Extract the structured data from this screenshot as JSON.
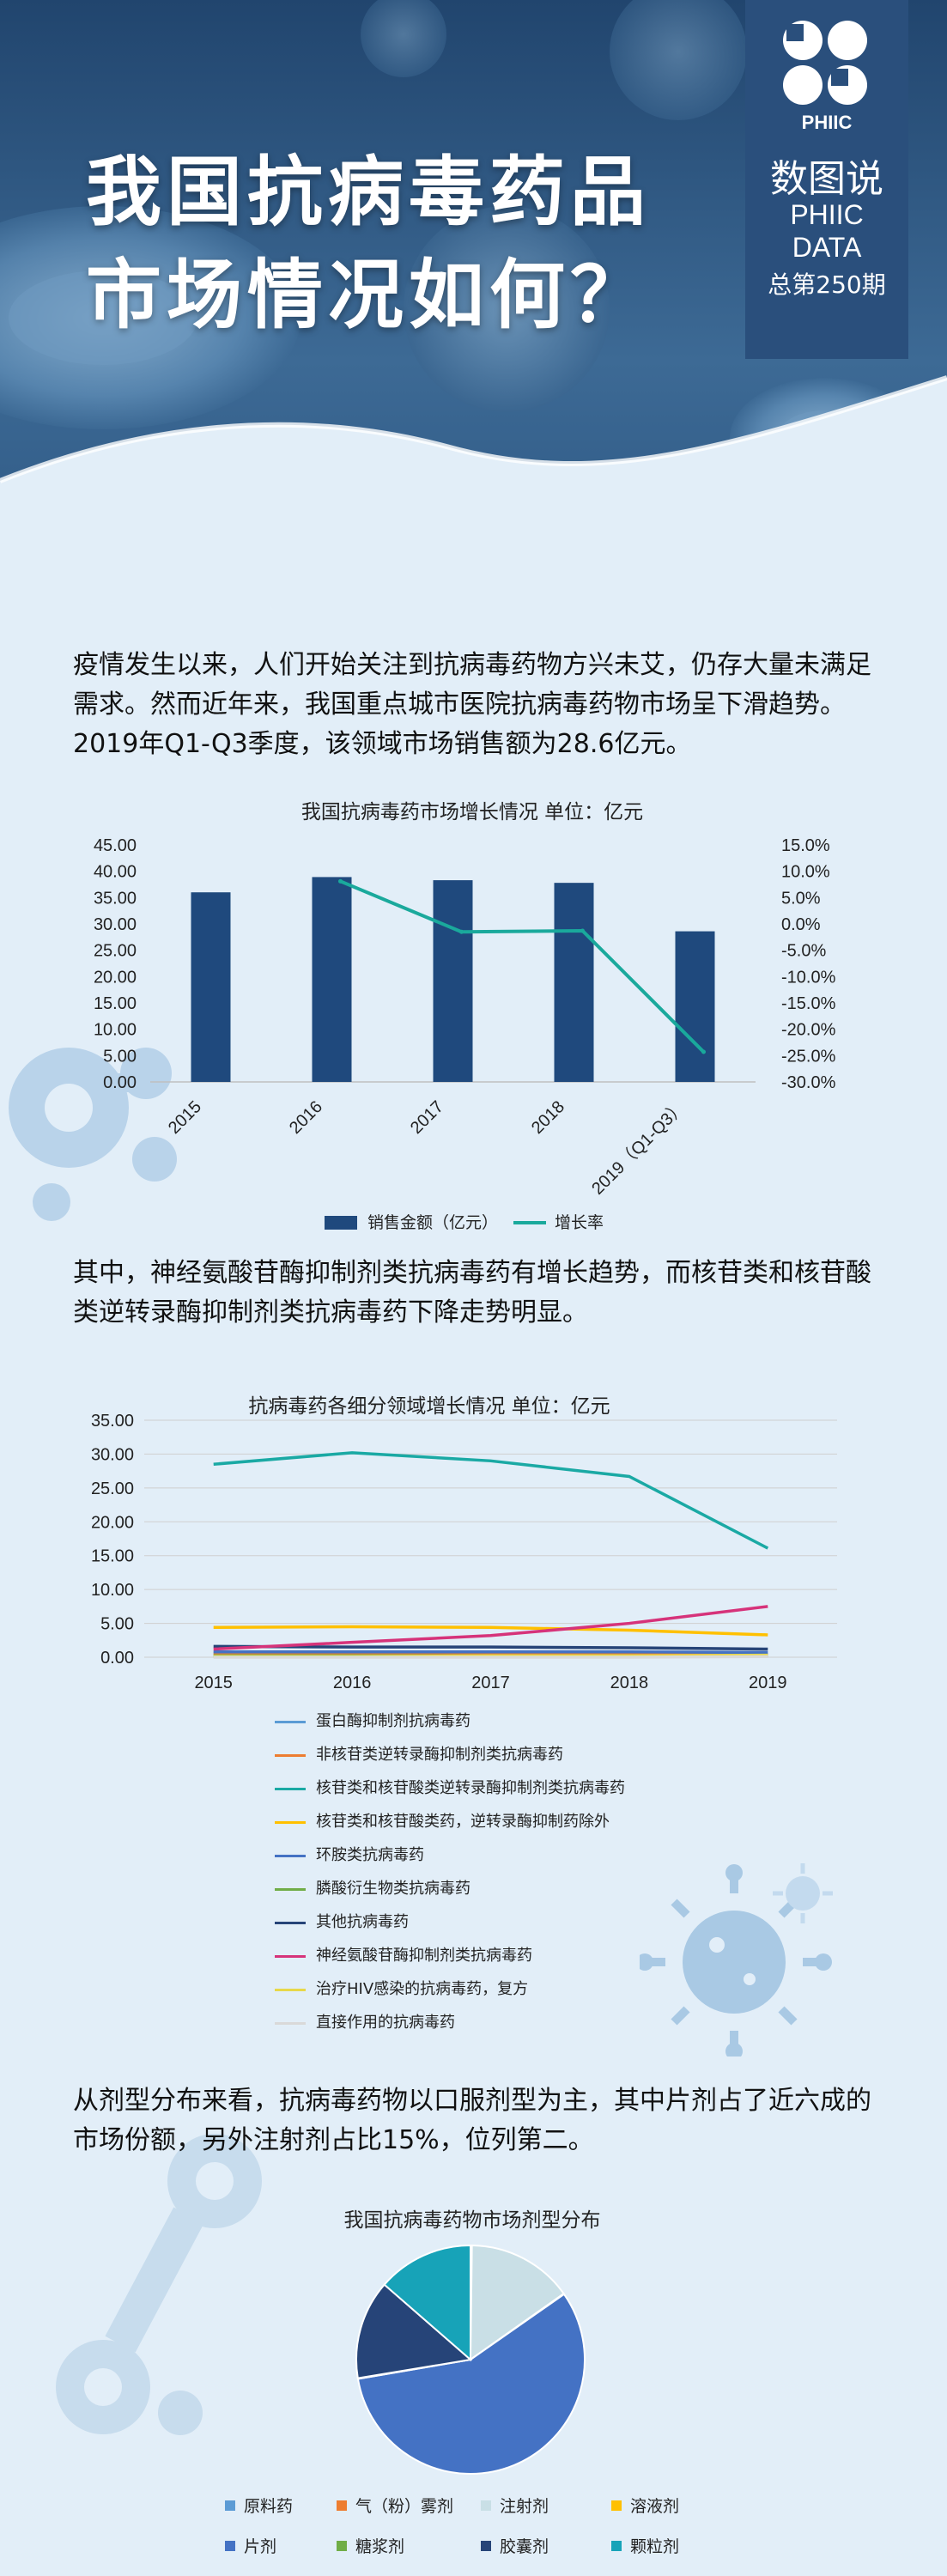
{
  "header": {
    "title_line1": "我国抗病毒药品",
    "title_line2": "市场情况如何？",
    "badge": {
      "brand": "PHIIC",
      "series": "数图说",
      "data_label_1": "PHIIC",
      "data_label_2": "DATA",
      "issue": "总第250期"
    }
  },
  "paragraphs": {
    "intro": "疫情发生以来，人们开始关注到抗病毒药物方兴未艾，仍存大量未满足需求。然而近年来，我国重点城市医院抗病毒药物市场呈下滑趋势。2019年Q1-Q3季度，该领域市场销售额为28.6亿元。",
    "second": "其中，神经氨酸苷酶抑制剂类抗病毒药有增长趋势，而核苷类和核苷酸类逆转录酶抑制剂类抗病毒药下降走势明显。",
    "third": "从剂型分布来看，抗病毒药物以口服剂型为主，其中片剂占了近六成的市场份额，另外注射剂占比15%，位列第二。"
  },
  "colors": {
    "bar": "#1f497d",
    "growth_line": "#1aa99c"
  },
  "chart_data": [
    {
      "type": "bar",
      "title": "我国抗病毒药市场增长情况 单位：亿元",
      "categories": [
        "2015",
        "2016",
        "2017",
        "2018",
        "2019（Q1-Q3）"
      ],
      "y_ticks": [
        "0.00",
        "5.00",
        "10.00",
        "15.00",
        "20.00",
        "25.00",
        "30.00",
        "35.00",
        "40.00",
        "45.00"
      ],
      "y2_ticks": [
        "-30.0%",
        "-25.0%",
        "-20.0%",
        "-15.0%",
        "-10.0%",
        "-5.0%",
        "0.0%",
        "5.0%",
        "10.0%",
        "15.0%"
      ],
      "ylim": [
        0,
        45
      ],
      "y2lim": [
        -30,
        15
      ],
      "legend_position": "bottom",
      "series": [
        {
          "name": "销售金额（亿元）",
          "type": "bar",
          "values": [
            36.0,
            38.9,
            38.3,
            37.8,
            28.6
          ]
        },
        {
          "name": "增长率",
          "type": "line",
          "axis": "right",
          "values": [
            null,
            8.1,
            -1.5,
            -1.3,
            -24.3
          ]
        }
      ]
    },
    {
      "type": "line",
      "title": "抗病毒药各细分领域增长情况 单位：亿元",
      "categories": [
        "2015",
        "2016",
        "2017",
        "2018",
        "2019"
      ],
      "y_ticks": [
        "0.00",
        "5.00",
        "10.00",
        "15.00",
        "20.00",
        "25.00",
        "30.00",
        "35.00"
      ],
      "ylim": [
        0,
        35
      ],
      "grid": true,
      "legend_position": "bottom",
      "series": [
        {
          "name": "蛋白酶抑制剂抗病毒药",
          "color": "#5b9bd5",
          "values": [
            0.3,
            0.3,
            0.3,
            0.3,
            0.3
          ]
        },
        {
          "name": "非核苷类逆转录酶抑制剂类抗病毒药",
          "color": "#ed7d31",
          "values": [
            0.6,
            0.6,
            0.5,
            0.5,
            0.4
          ]
        },
        {
          "name": "核苷类和核苷酸类逆转录酶抑制剂类抗病毒药",
          "color": "#1aa9a4",
          "values": [
            28.5,
            30.2,
            29.0,
            26.7,
            16.1
          ]
        },
        {
          "name": "核苷类和核苷酸类药，逆转录酶抑制药除外",
          "color": "#ffc000",
          "values": [
            4.4,
            4.5,
            4.4,
            4.0,
            3.3
          ]
        },
        {
          "name": "环胺类抗病毒药",
          "color": "#4472c4",
          "values": [
            0.8,
            0.8,
            0.8,
            0.8,
            0.7
          ]
        },
        {
          "name": "膦酸衍生物类抗病毒药",
          "color": "#70ad47",
          "values": [
            0.2,
            0.2,
            0.2,
            0.2,
            0.2
          ]
        },
        {
          "name": "其他抗病毒药",
          "color": "#264478",
          "values": [
            1.6,
            1.5,
            1.5,
            1.4,
            1.2
          ]
        },
        {
          "name": "神经氨酸苷酶抑制剂类抗病毒药",
          "color": "#d6337a",
          "values": [
            1.2,
            2.2,
            3.2,
            5.0,
            7.5
          ]
        },
        {
          "name": "治疗HIV感染的抗病毒药，复方",
          "color": "#e8d84a",
          "values": [
            0.1,
            0.1,
            0.2,
            0.2,
            0.3
          ]
        },
        {
          "name": "直接作用的抗病毒药",
          "color": "#d9d9d9",
          "values": [
            0.0,
            0.0,
            0.0,
            0.0,
            0.1
          ]
        }
      ]
    },
    {
      "type": "pie",
      "title": "我国抗病毒药物市场剂型分布",
      "legend_position": "bottom",
      "slices": [
        {
          "name": "原料药",
          "color": "#5b9bd5",
          "value": 0.1
        },
        {
          "name": "气（粉）雾剂",
          "color": "#ed7d31",
          "value": 0.1
        },
        {
          "name": "注射剂",
          "color": "#c9dfe6",
          "value": 15.0
        },
        {
          "name": "溶液剂",
          "color": "#ffc000",
          "value": 0.1
        },
        {
          "name": "片剂",
          "color": "#4472c4",
          "value": 57.0
        },
        {
          "name": "糖浆剂",
          "color": "#70ad47",
          "value": 0.1
        },
        {
          "name": "胶囊剂",
          "color": "#264478",
          "value": 14.0
        },
        {
          "name": "颗粒剂",
          "color": "#17a3b8",
          "value": 13.6
        }
      ]
    }
  ]
}
